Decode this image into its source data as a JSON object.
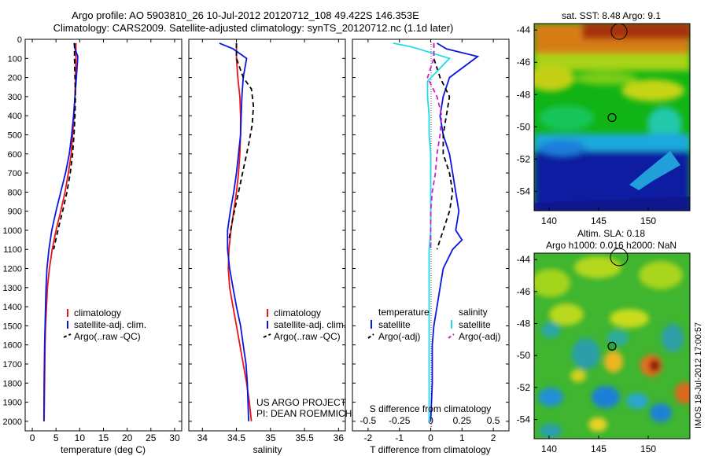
{
  "header": {
    "line1": "Argo profile: AO 5903810_26 10-Jul-2012 20120712_108 49.422S 146.353E",
    "line2": "Climatology: CARS2009. Satellite-adjusted climatology: synTS_20120712.nc (1.1d later)"
  },
  "credits": {
    "project": "US ARGO PROJECT",
    "pi": "PI: DEAN ROEMMICH",
    "stamp": "IMOS 18-Jul-2012 17:00:57"
  },
  "colors": {
    "climatology": "#e8141b",
    "satellite": "#0b16e0",
    "argo": "#000000",
    "salinity_satellite": "#22dbe6",
    "salinity_argo": "#d21fd0"
  },
  "chart_data": [
    {
      "id": "temperature",
      "type": "line",
      "xlabel": "temperature (deg C)",
      "ylabel": "",
      "xlim": [
        -1.5,
        31.5
      ],
      "ylim": [
        2050,
        0
      ],
      "xticks": [
        0,
        5,
        10,
        15,
        20,
        25,
        30
      ],
      "yticks": [
        0,
        100,
        200,
        300,
        400,
        500,
        600,
        700,
        800,
        900,
        1000,
        1100,
        1200,
        1300,
        1400,
        1500,
        1600,
        1700,
        1800,
        1900,
        2000
      ],
      "legend": [
        "climatology",
        "satellite-adj. clim.",
        "Argo(..raw -QC)"
      ],
      "series": [
        {
          "name": "climatology",
          "style": "solid",
          "color": "#e8141b",
          "x": [
            9.2,
            9.2,
            9.1,
            9.0,
            8.8,
            8.5,
            8.2,
            7.6,
            6.9,
            6.0,
            5.0,
            4.2,
            3.6,
            3.2,
            3.0,
            2.8,
            2.7,
            2.65,
            2.6,
            2.55,
            2.5
          ],
          "y": [
            20,
            100,
            200,
            300,
            400,
            500,
            600,
            700,
            800,
            900,
            1000,
            1100,
            1200,
            1300,
            1400,
            1500,
            1600,
            1700,
            1800,
            1900,
            2000
          ]
        },
        {
          "name": "satellite-adj. clim.",
          "style": "solid",
          "color": "#0b16e0",
          "x": [
            8.8,
            9.0,
            9.6,
            9.3,
            9.0,
            8.7,
            8.3,
            7.8,
            7.0,
            6.0,
            5.0,
            4.1,
            3.5,
            3.1,
            2.9,
            2.8,
            2.7,
            2.6,
            2.55,
            2.5,
            2.45
          ],
          "y": [
            20,
            50,
            90,
            200,
            300,
            400,
            500,
            600,
            700,
            800,
            900,
            1000,
            1100,
            1200,
            1300,
            1400,
            1500,
            1600,
            1700,
            1800,
            2000
          ]
        },
        {
          "name": "Argo(..raw -QC)",
          "style": "dashed",
          "color": "#000000",
          "x": [
            8.9,
            8.9,
            9.0,
            9.1,
            9.0,
            8.8,
            8.5,
            8.0,
            7.3,
            6.4,
            5.4,
            4.5
          ],
          "y": [
            20,
            100,
            200,
            300,
            400,
            500,
            600,
            700,
            800,
            900,
            1000,
            1100
          ]
        }
      ]
    },
    {
      "id": "salinity",
      "type": "line",
      "xlabel": "salinity",
      "ylabel": "",
      "xlim": [
        33.8,
        36.1
      ],
      "ylim": [
        2050,
        0
      ],
      "xticks": [
        34,
        34.5,
        35,
        35.5,
        36
      ],
      "xticklabels": [
        "34",
        "34.5",
        "35",
        "35.5",
        "36"
      ],
      "legend": [
        "climatology",
        "satellite-adj. clim.",
        "Argo(..raw -QC)"
      ],
      "series": [
        {
          "name": "climatology",
          "style": "solid",
          "color": "#e8141b",
          "x": [
            34.5,
            34.5,
            34.52,
            34.55,
            34.56,
            34.56,
            34.55,
            34.53,
            34.5,
            34.46,
            34.42,
            34.39,
            34.38,
            34.4,
            34.45,
            34.5,
            34.55,
            34.6,
            34.65,
            34.69,
            34.72
          ],
          "y": [
            20,
            100,
            200,
            300,
            400,
            500,
            600,
            700,
            800,
            900,
            1000,
            1100,
            1200,
            1300,
            1400,
            1500,
            1600,
            1700,
            1800,
            1900,
            2000
          ]
        },
        {
          "name": "satellite-adj. clim.",
          "style": "solid",
          "color": "#0b16e0",
          "x": [
            34.25,
            34.45,
            34.65,
            34.6,
            34.58,
            34.57,
            34.56,
            34.53,
            34.5,
            34.46,
            34.41,
            34.37,
            34.37,
            34.4,
            34.45,
            34.5,
            34.56,
            34.6,
            34.64,
            34.66,
            34.68
          ],
          "y": [
            20,
            50,
            100,
            200,
            300,
            400,
            500,
            600,
            700,
            800,
            900,
            1000,
            1100,
            1200,
            1300,
            1400,
            1500,
            1600,
            1700,
            1800,
            2000
          ]
        },
        {
          "name": "Argo(..raw -QC)",
          "style": "dashed",
          "color": "#000000",
          "x": [
            34.5,
            34.5,
            34.6,
            34.72,
            34.75,
            34.73,
            34.68,
            34.62,
            34.56,
            34.5,
            34.44,
            34.39
          ],
          "y": [
            20,
            100,
            200,
            260,
            350,
            450,
            550,
            650,
            750,
            850,
            950,
            1050
          ]
        }
      ]
    },
    {
      "id": "difference",
      "type": "line",
      "xlabel": "T difference from climatology",
      "x2label": "S difference from climatology",
      "xlim": [
        -2.5,
        2.5
      ],
      "ylim": [
        2050,
        0
      ],
      "xticks": [
        -2,
        -1,
        0,
        1,
        2
      ],
      "x2ticks": [
        -0.5,
        -0.25,
        0,
        0.25,
        0.5
      ],
      "x2ticklabels": [
        "-0.5",
        "-0.25",
        "0",
        "0.25",
        "0.5"
      ],
      "legend": {
        "temperature_title": "temperature",
        "salinity_title": "salinity",
        "temperature": [
          "satellite",
          "Argo(-adj)"
        ],
        "salinity": [
          "satellite",
          "Argo(-adj)"
        ]
      },
      "series": [
        {
          "name": "satellite",
          "group": "temperature",
          "style": "solid",
          "color": "#0b16e0",
          "x": [
            0.2,
            0.5,
            1.5,
            0.6,
            0.4,
            0.3,
            0.4,
            0.6,
            0.7,
            0.8,
            0.9,
            0.8,
            1.0,
            0.7,
            0.4,
            0.3,
            0.2,
            0.1,
            0.05,
            0.05,
            0.0
          ],
          "y": [
            20,
            50,
            90,
            200,
            300,
            400,
            500,
            600,
            700,
            800,
            900,
            1000,
            1050,
            1100,
            1200,
            1300,
            1400,
            1500,
            1600,
            1800,
            2000
          ]
        },
        {
          "name": "Argo(-adj)",
          "group": "temperature",
          "style": "dashed",
          "color": "#000000",
          "x": [
            0.1,
            0.1,
            0.3,
            0.6,
            0.5,
            0.4,
            0.4,
            0.6,
            0.7,
            0.6,
            0.4,
            0.2
          ],
          "y": [
            20,
            100,
            200,
            300,
            400,
            500,
            600,
            700,
            800,
            900,
            1000,
            1100
          ]
        },
        {
          "name": "satellite",
          "group": "salinity",
          "style": "solid",
          "color": "#22dbe6",
          "x": [
            -1.2,
            -0.6,
            0.6,
            -0.1,
            -0.1,
            -0.05,
            -0.05,
            0.0,
            0.0,
            0.0,
            0.0,
            0.0,
            -0.05,
            -0.05,
            -0.05,
            -0.05,
            -0.05,
            -0.05,
            -0.05,
            -0.05
          ],
          "y": [
            20,
            40,
            100,
            220,
            300,
            400,
            500,
            600,
            700,
            800,
            900,
            1000,
            1100,
            1200,
            1300,
            1400,
            1500,
            1600,
            1800,
            2000
          ]
        },
        {
          "name": "Argo(-adj)",
          "group": "salinity",
          "style": "dashed",
          "color": "#d21fd0",
          "x": [
            0.1,
            0.1,
            -0.1,
            0.2,
            0.35,
            0.3,
            0.2,
            0.15,
            0.05,
            0.0,
            0.0,
            0.0
          ],
          "y": [
            20,
            100,
            200,
            300,
            400,
            500,
            600,
            700,
            800,
            900,
            1000,
            1100
          ]
        }
      ]
    },
    {
      "id": "sst_map",
      "type": "heatmap",
      "title": "sat. SST: 8.48 Argo: 9.1",
      "xlim": [
        138.5,
        154.2
      ],
      "ylim": [
        -55.2,
        -43.6
      ],
      "xticks": [
        140,
        145,
        150
      ],
      "yticks": [
        -44,
        -46,
        -48,
        -50,
        -52,
        -54
      ],
      "marker": {
        "lon": 146.353,
        "lat": -49.422
      }
    },
    {
      "id": "sla_map",
      "type": "heatmap",
      "title": "Altim. SLA: 0.18",
      "subtitle": "Argo h1000: 0.016 h2000: NaN",
      "xlim": [
        138.5,
        154.2
      ],
      "ylim": [
        -55.2,
        -43.6
      ],
      "xticks": [
        140,
        145,
        150
      ],
      "yticks": [
        -44,
        -46,
        -48,
        -50,
        -52,
        -54
      ],
      "marker": {
        "lon": 146.353,
        "lat": -49.422
      }
    }
  ]
}
